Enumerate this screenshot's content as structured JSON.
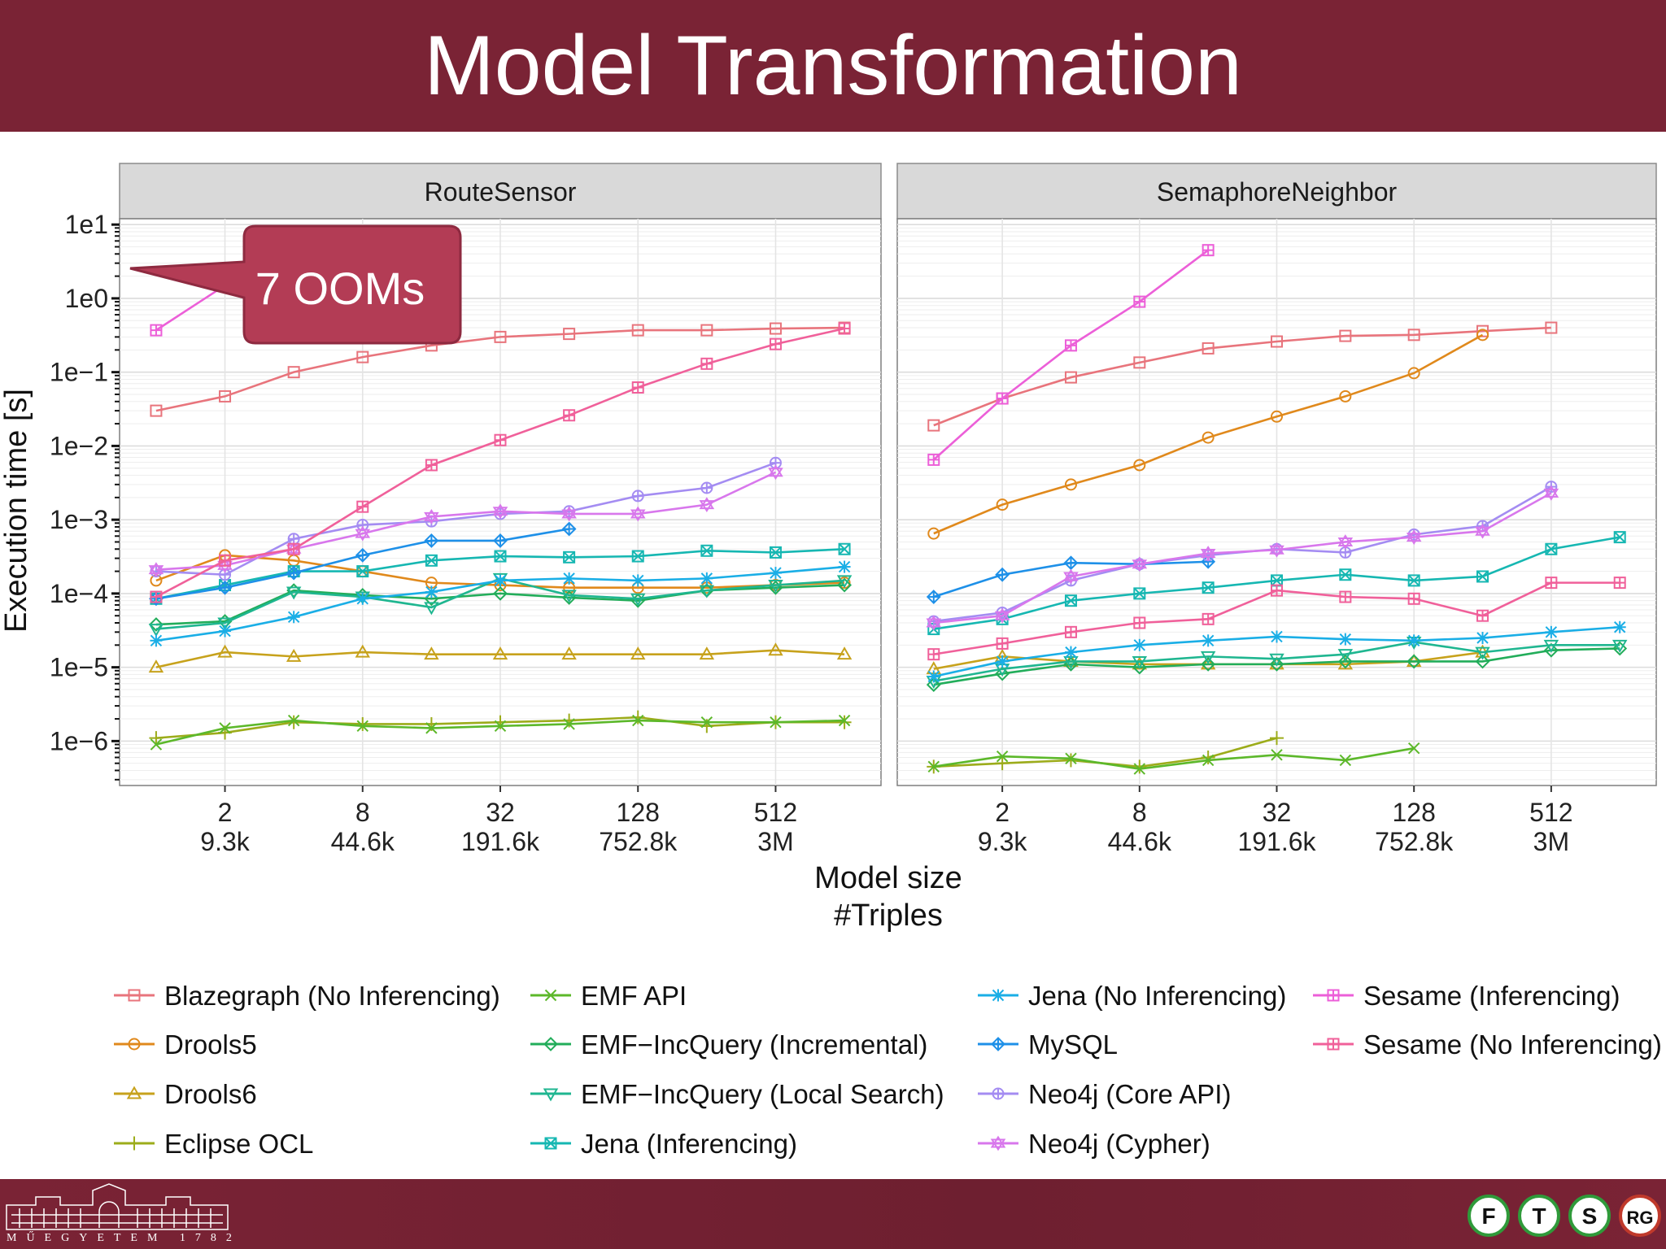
{
  "slide": {
    "title": "Model Transformation",
    "callout": "7 OOMs",
    "footer_caption": "MŰEGYETEM 1782",
    "logo_letters": [
      "F",
      "T",
      "S",
      "RG"
    ]
  },
  "chart_data": {
    "type": "line",
    "ylabel": "Execution time [s]",
    "xlabel": "Model size",
    "xlabel2": "#Triples",
    "yscale": "log10",
    "ylim": [
      2.5e-07,
      12
    ],
    "y_ticks": [
      {
        "value": 10,
        "label": "1e1"
      },
      {
        "value": 1,
        "label": "1e0"
      },
      {
        "value": 0.1,
        "label": "1e−1"
      },
      {
        "value": 0.01,
        "label": "1e−2"
      },
      {
        "value": 0.001,
        "label": "1e−3"
      },
      {
        "value": 0.0001,
        "label": "1e−4"
      },
      {
        "value": 1e-05,
        "label": "1e−5"
      },
      {
        "value": 1e-06,
        "label": "1e−6"
      }
    ],
    "x_positions": [
      1,
      2,
      4,
      8,
      16,
      32,
      64,
      128,
      256,
      512,
      1024
    ],
    "x_ticks": [
      {
        "value": 2,
        "label": "2",
        "sub": "9.3k"
      },
      {
        "value": 8,
        "label": "8",
        "sub": "44.6k"
      },
      {
        "value": 32,
        "label": "32",
        "sub": "191.6k"
      },
      {
        "value": 128,
        "label": "128",
        "sub": "752.8k"
      },
      {
        "value": 512,
        "label": "512",
        "sub": "3M"
      }
    ],
    "legend": [
      {
        "name": "Blazegraph (No Inferencing)",
        "color": "#e8747c",
        "shape": "square"
      },
      {
        "name": "Drools5",
        "color": "#e0891c",
        "shape": "circle"
      },
      {
        "name": "Drools6",
        "color": "#c7a21c",
        "shape": "triangle"
      },
      {
        "name": "Eclipse OCL",
        "color": "#9cac1a",
        "shape": "plus"
      },
      {
        "name": "EMF API",
        "color": "#5cb82a",
        "shape": "cross"
      },
      {
        "name": "EMF−IncQuery (Incremental)",
        "color": "#22ad5a",
        "shape": "diamond"
      },
      {
        "name": "EMF−IncQuery (Local Search)",
        "color": "#1fb690",
        "shape": "triangle-down"
      },
      {
        "name": "Jena (Inferencing)",
        "color": "#16b7b2",
        "shape": "square-x"
      },
      {
        "name": "Jena (No Inferencing)",
        "color": "#1aaee6",
        "shape": "asterisk"
      },
      {
        "name": "MySQL",
        "color": "#1e90e8",
        "shape": "diamond-plus"
      },
      {
        "name": "Neo4j (Core API)",
        "color": "#a48cf2",
        "shape": "circle-plus"
      },
      {
        "name": "Neo4j (Cypher)",
        "color": "#d877ec",
        "shape": "star"
      },
      {
        "name": "Sesame (Inferencing)",
        "color": "#ec5fd8",
        "shape": "square-plus"
      },
      {
        "name": "Sesame (No Inferencing)",
        "color": "#f0609a",
        "shape": "square-plus"
      }
    ],
    "panels": [
      {
        "title": "RouteSensor",
        "series": [
          {
            "name": "Blazegraph (No Inferencing)",
            "values": [
              0.03,
              0.047,
              0.1,
              0.16,
              0.23,
              0.3,
              0.33,
              0.37,
              0.37,
              0.39,
              0.4
            ]
          },
          {
            "name": "Drools5",
            "values": [
              0.00015,
              0.00033,
              0.00028,
              0.0002,
              0.00014,
              0.00013,
              0.00012,
              0.00012,
              0.00012,
              0.00013,
              0.00014
            ]
          },
          {
            "name": "Drools6",
            "values": [
              1e-05,
              1.6e-05,
              1.4e-05,
              1.6e-05,
              1.5e-05,
              1.5e-05,
              1.5e-05,
              1.5e-05,
              1.5e-05,
              1.7e-05,
              1.5e-05
            ]
          },
          {
            "name": "Eclipse OCL",
            "values": [
              1.1e-06,
              1.3e-06,
              1.8e-06,
              1.7e-06,
              1.7e-06,
              1.8e-06,
              1.9e-06,
              2.1e-06,
              1.6e-06,
              1.8e-06,
              1.8e-06
            ]
          },
          {
            "name": "EMF API",
            "values": [
              9e-07,
              1.5e-06,
              1.9e-06,
              1.6e-06,
              1.5e-06,
              1.6e-06,
              1.7e-06,
              1.9e-06,
              1.8e-06,
              1.8e-06,
              1.9e-06
            ]
          },
          {
            "name": "EMF−IncQuery (Incremental)",
            "values": [
              3.8e-05,
              4.2e-05,
              0.00011,
              9.5e-05,
              8.5e-05,
              0.0001,
              8.8e-05,
              8e-05,
              0.00011,
              0.00012,
              0.00013
            ]
          },
          {
            "name": "EMF−IncQuery (Local Search)",
            "values": [
              3.3e-05,
              4e-05,
              0.000105,
              9e-05,
              6.5e-05,
              0.00016,
              9.5e-05,
              8.5e-05,
              0.00011,
              0.00013,
              0.00015
            ]
          },
          {
            "name": "Jena (Inferencing)",
            "values": [
              8.5e-05,
              0.00013,
              0.0002,
              0.0002,
              0.00028,
              0.00032,
              0.00031,
              0.00032,
              0.00038,
              0.00036,
              0.0004
            ]
          },
          {
            "name": "Jena (No Inferencing)",
            "values": [
              2.3e-05,
              3.1e-05,
              4.8e-05,
              8.5e-05,
              0.000105,
              0.00015,
              0.00016,
              0.00015,
              0.00016,
              0.00019,
              0.00023
            ]
          },
          {
            "name": "MySQL",
            "values": [
              8.5e-05,
              0.00012,
              0.00019,
              0.00033,
              0.00052,
              0.00052,
              0.00075,
              null,
              null,
              null,
              null
            ]
          },
          {
            "name": "Neo4j (Core API)",
            "values": [
              0.0002,
              0.00018,
              0.00055,
              0.00085,
              0.00095,
              0.0012,
              0.0013,
              0.0021,
              0.0027,
              0.0059,
              null
            ]
          },
          {
            "name": "Neo4j (Cypher)",
            "values": [
              0.00021,
              0.00024,
              0.0004,
              0.00065,
              0.0011,
              0.0013,
              0.0012,
              0.0012,
              0.0016,
              0.0044,
              null
            ]
          },
          {
            "name": "Sesame (Inferencing)",
            "values": [
              0.37,
              1.5,
              null,
              null,
              null,
              null,
              null,
              null,
              null,
              null,
              null
            ]
          },
          {
            "name": "Sesame (No Inferencing)",
            "values": [
              9e-05,
              0.00028,
              0.0004,
              0.0015,
              0.0055,
              0.012,
              0.026,
              0.062,
              0.13,
              0.24,
              0.39
            ]
          }
        ]
      },
      {
        "title": "SemaphoreNeighbor",
        "series": [
          {
            "name": "Blazegraph (No Inferencing)",
            "values": [
              0.019,
              0.044,
              0.085,
              0.135,
              0.21,
              0.26,
              0.31,
              0.32,
              0.36,
              0.4,
              null
            ]
          },
          {
            "name": "Drools5",
            "values": [
              0.00065,
              0.0016,
              0.003,
              0.0055,
              0.013,
              0.025,
              0.047,
              0.097,
              0.32,
              null,
              null
            ]
          },
          {
            "name": "Drools6",
            "values": [
              9.5e-06,
              1.4e-05,
              1.2e-05,
              1.1e-05,
              1.1e-05,
              1.1e-05,
              1.1e-05,
              1.2e-05,
              1.6e-05,
              null,
              null
            ]
          },
          {
            "name": "Eclipse OCL",
            "values": [
              4.5e-07,
              5e-07,
              5.5e-07,
              4.5e-07,
              6e-07,
              1.1e-06,
              null,
              null,
              null,
              null,
              null
            ]
          },
          {
            "name": "EMF API",
            "values": [
              4.5e-07,
              6.2e-07,
              5.8e-07,
              4.2e-07,
              5.5e-07,
              6.5e-07,
              5.5e-07,
              8e-07,
              null,
              null,
              null
            ]
          },
          {
            "name": "EMF−IncQuery (Incremental)",
            "values": [
              5.8e-06,
              8.2e-06,
              1.1e-05,
              1e-05,
              1.1e-05,
              1.1e-05,
              1.2e-05,
              1.2e-05,
              1.2e-05,
              1.7e-05,
              1.8e-05
            ]
          },
          {
            "name": "EMF−IncQuery (Local Search)",
            "values": [
              6.5e-06,
              9.5e-06,
              1.2e-05,
              1.2e-05,
              1.4e-05,
              1.3e-05,
              1.5e-05,
              2.2e-05,
              1.6e-05,
              2e-05,
              2e-05
            ]
          },
          {
            "name": "Jena (Inferencing)",
            "values": [
              3.3e-05,
              4.5e-05,
              8e-05,
              0.0001,
              0.00012,
              0.00015,
              0.00018,
              0.00015,
              0.00017,
              0.0004,
              0.00058
            ]
          },
          {
            "name": "Jena (No Inferencing)",
            "values": [
              7.5e-06,
              1.2e-05,
              1.6e-05,
              2e-05,
              2.3e-05,
              2.6e-05,
              2.4e-05,
              2.3e-05,
              2.5e-05,
              3e-05,
              3.5e-05
            ]
          },
          {
            "name": "MySQL",
            "values": [
              9e-05,
              0.00018,
              0.00026,
              0.00025,
              0.00027,
              null,
              null,
              null,
              null,
              null,
              null
            ]
          },
          {
            "name": "Neo4j (Core API)",
            "values": [
              4.2e-05,
              5.5e-05,
              0.00015,
              0.00025,
              0.00033,
              0.0004,
              0.00036,
              0.00063,
              0.00082,
              0.0028,
              null
            ]
          },
          {
            "name": "Neo4j (Cypher)",
            "values": [
              4e-05,
              5e-05,
              0.00017,
              0.00025,
              0.00035,
              0.00039,
              0.0005,
              0.00058,
              0.0007,
              0.0023,
              null
            ]
          },
          {
            "name": "Sesame (Inferencing)",
            "values": [
              0.0065,
              0.044,
              0.23,
              0.9,
              4.5,
              null,
              null,
              null,
              null,
              null,
              null
            ]
          },
          {
            "name": "Sesame (No Inferencing)",
            "values": [
              1.5e-05,
              2.1e-05,
              3e-05,
              4e-05,
              4.5e-05,
              0.00011,
              9e-05,
              8.5e-05,
              5e-05,
              0.00014,
              0.00014
            ]
          }
        ]
      }
    ]
  }
}
